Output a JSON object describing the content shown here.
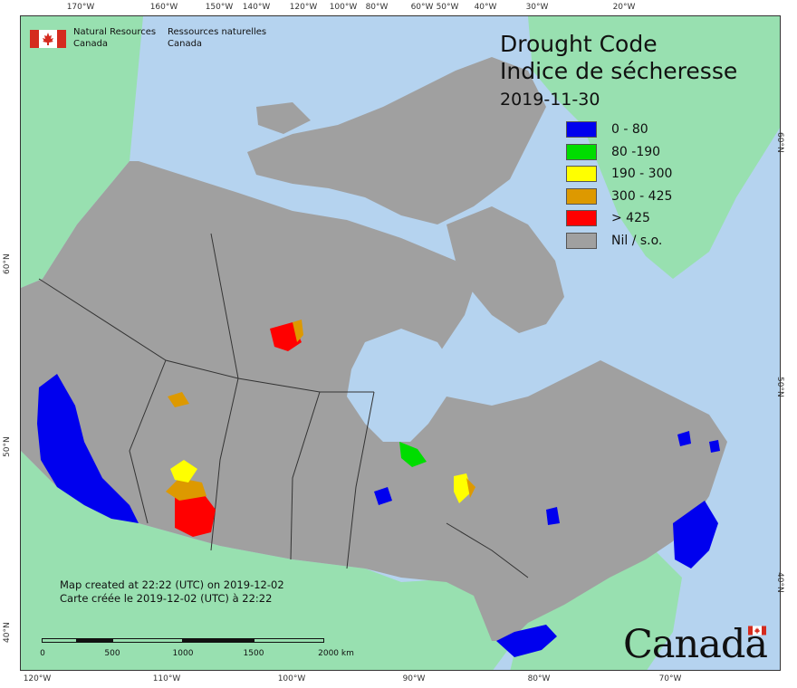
{
  "header": {
    "agency_en_1": "Natural Resources",
    "agency_en_2": "Canada",
    "agency_fr_1": "Ressources naturelles",
    "agency_fr_2": "Canada"
  },
  "title": {
    "line1": "Drought Code",
    "line2": "Indice de sécheresse",
    "date": "2019-11-30"
  },
  "legend": [
    {
      "label": "0 - 80",
      "color": "#0000ee"
    },
    {
      "label": "80 -190",
      "color": "#00dd00"
    },
    {
      "label": "190 - 300",
      "color": "#ffff00"
    },
    {
      "label": "300 - 425",
      "color": "#dd9900"
    },
    {
      "label": "> 425",
      "color": "#ff0000"
    },
    {
      "label": "Nil / s.o.",
      "color": "#a0a0a0"
    }
  ],
  "credits": {
    "en": "Map created at 22:22 (UTC) on 2019-12-02",
    "fr": "Carte créée le 2019-12-02 (UTC) à 22:22"
  },
  "scale": {
    "labels": [
      "0",
      "500",
      "1000",
      "1500",
      "2000  km"
    ]
  },
  "wordmark": {
    "text": "Canada"
  },
  "graticule": {
    "top": [
      "170°W",
      "160°W",
      "150°W",
      "140°W",
      "120°W",
      "100°W",
      "80°W",
      "60°W",
      "50°W",
      "40°W",
      "30°W",
      "20°W"
    ],
    "bottom": [
      "120°W",
      "110°W",
      "100°W",
      "90°W",
      "80°W",
      "70°W"
    ],
    "left": [
      "60°N",
      "50°N",
      "40°N"
    ],
    "right": [
      "60°N",
      "50°N",
      "40°N"
    ]
  },
  "colors": {
    "water": "#b5d3ef",
    "foreign_land": "#98e0b0",
    "nil": "#a0a0a0",
    "border": "#333333"
  }
}
